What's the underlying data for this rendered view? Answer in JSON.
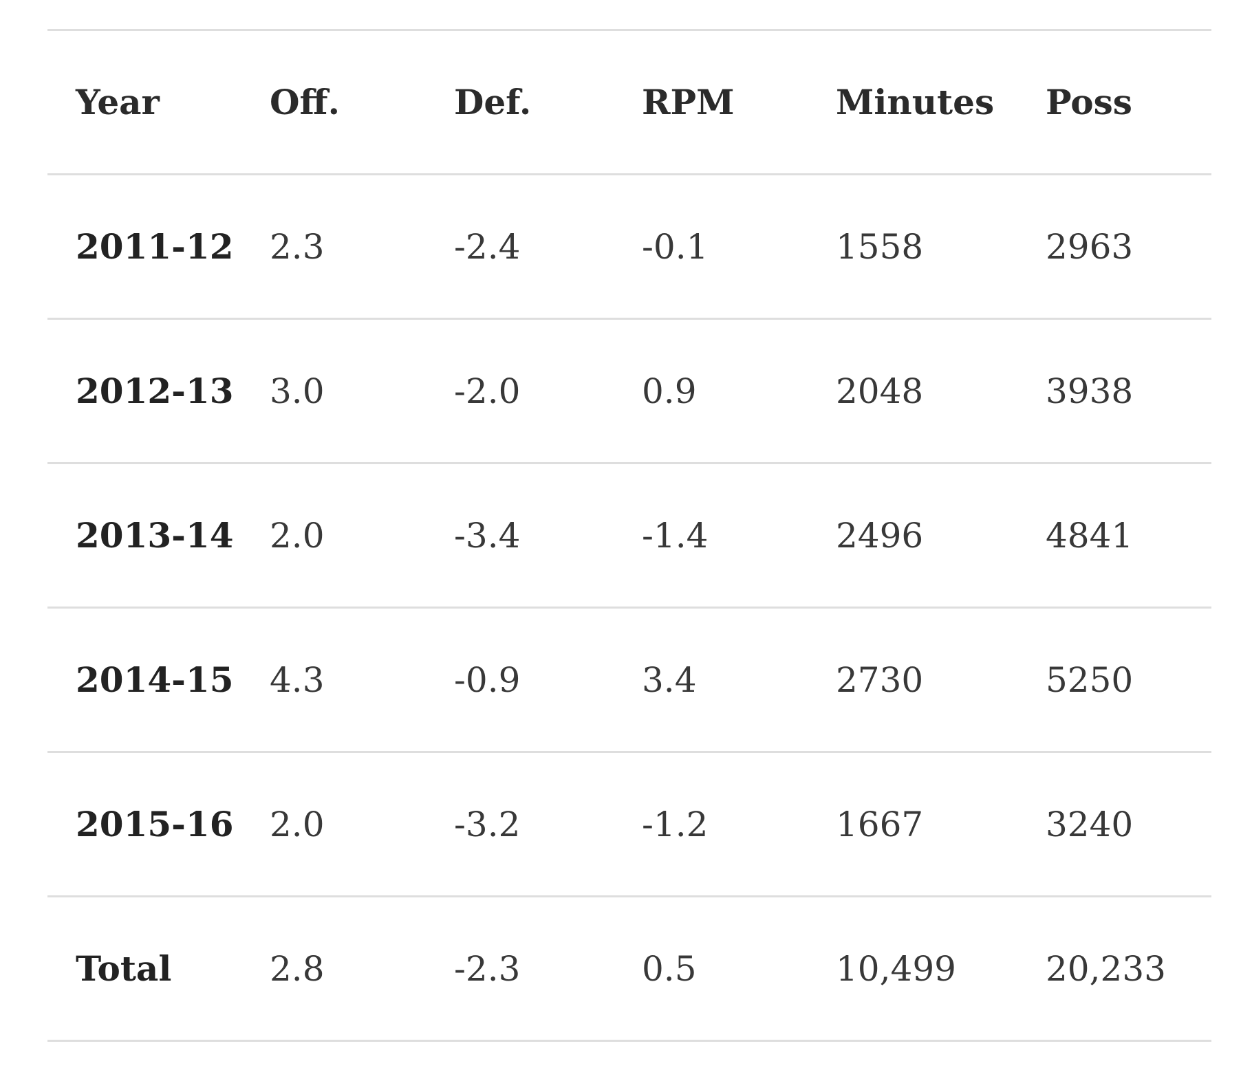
{
  "table": {
    "headers": [
      "Year",
      "Off.",
      "Def.",
      "RPM",
      "Minutes",
      "Poss"
    ],
    "rows": [
      [
        "2011-12",
        "2.3",
        "-2.4",
        "-0.1",
        "1558",
        "2963"
      ],
      [
        "2012-13",
        "3.0",
        "-2.0",
        "0.9",
        "2048",
        "3938"
      ],
      [
        "2013-14",
        "2.0",
        "-3.4",
        "-1.4",
        "2496",
        "4841"
      ],
      [
        "2014-15",
        "4.3",
        "-0.9",
        "3.4",
        "2730",
        "5250"
      ],
      [
        "2015-16",
        "2.0",
        "-3.2",
        "-1.2",
        "1667",
        "3240"
      ],
      [
        "Total",
        "2.8",
        "-2.3",
        "0.5",
        "10,499",
        "20,233"
      ]
    ]
  }
}
